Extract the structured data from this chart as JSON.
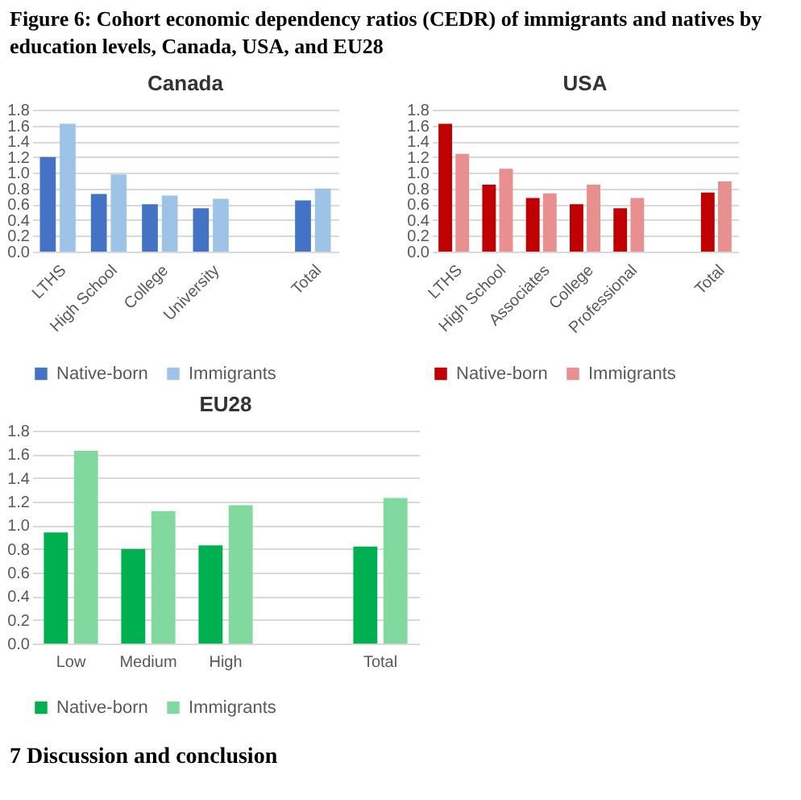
{
  "chart_data": [
    {
      "type": "bar",
      "title": "Canada",
      "annotations": [
        "Figure 6: Cohort economic dependency ratios (CEDR) of immigrants and natives by education levels, Canada, USA, and EU28"
      ],
      "categories": [
        "LTHS",
        "High School",
        "College",
        "University",
        null,
        "Total"
      ],
      "series": [
        {
          "name": "Native-born",
          "color": "#4472c4",
          "values": [
            1.2,
            0.73,
            0.6,
            0.55,
            null,
            0.65
          ]
        },
        {
          "name": "Immigrants",
          "color": "#9dc3e6",
          "values": [
            1.62,
            0.98,
            0.71,
            0.67,
            null,
            0.8
          ]
        }
      ],
      "ylim": [
        0,
        1.8
      ],
      "yticks": [
        {
          "value": 0,
          "label": "0.0"
        },
        {
          "value": 0.2,
          "label": "0.2"
        },
        {
          "value": 0.4,
          "label": "0.4"
        },
        {
          "value": 0.6,
          "label": "0.6"
        },
        {
          "value": 0.8,
          "label": "0.8"
        },
        {
          "value": 1,
          "label": "1.0"
        },
        {
          "value": 1.2,
          "label": "1.2"
        },
        {
          "value": 1.4,
          "label": "1.4"
        },
        {
          "value": 1.6,
          "label": "1.6"
        },
        {
          "value": 1.8,
          "label": "1.8"
        }
      ],
      "grid": "y",
      "legend": "bottom"
    },
    {
      "type": "bar",
      "title": "USA",
      "categories": [
        "LTHS",
        "High School",
        "Associates",
        "College",
        "Professional",
        null,
        "Total"
      ],
      "series": [
        {
          "name": "Native-born",
          "color": "#c00000",
          "values": [
            1.62,
            0.85,
            0.68,
            0.6,
            0.55,
            null,
            0.75
          ]
        },
        {
          "name": "Immigrants",
          "color": "#e88f8f",
          "values": [
            1.24,
            1.05,
            0.74,
            0.85,
            0.68,
            null,
            0.89
          ]
        }
      ],
      "ylim": [
        0,
        1.8
      ],
      "yticks": [
        {
          "value": 0,
          "label": "0.0"
        },
        {
          "value": 0.2,
          "label": "0.2"
        },
        {
          "value": 0.4,
          "label": "0.4"
        },
        {
          "value": 0.6,
          "label": "0.6"
        },
        {
          "value": 0.8,
          "label": "0.8"
        },
        {
          "value": 1,
          "label": "1.0"
        },
        {
          "value": 1.2,
          "label": "1.2"
        },
        {
          "value": 1.4,
          "label": "1.4"
        },
        {
          "value": 1.6,
          "label": "1.6"
        },
        {
          "value": 1.8,
          "label": "1.8"
        }
      ],
      "grid": "y",
      "legend": "bottom"
    },
    {
      "type": "bar",
      "title": "EU28",
      "annotations": [
        "7 Discussion and conclusion"
      ],
      "categories": [
        "Low",
        "Medium",
        "High",
        null,
        "Total"
      ],
      "series": [
        {
          "name": "Native-born",
          "color": "#00b050",
          "values": [
            0.94,
            0.8,
            0.83,
            null,
            0.82
          ]
        },
        {
          "name": "Immigrants",
          "color": "#82d9a0",
          "values": [
            1.63,
            1.12,
            1.17,
            null,
            1.23
          ]
        }
      ],
      "ylim": [
        0,
        1.8
      ],
      "yticks": [
        {
          "value": 0,
          "label": "0.0"
        },
        {
          "value": 0.2,
          "label": "0.2"
        },
        {
          "value": 0.4,
          "label": "0.4"
        },
        {
          "value": 0.6,
          "label": "0.6"
        },
        {
          "value": 0.8,
          "label": "0.8"
        },
        {
          "value": 1,
          "label": "1.0"
        },
        {
          "value": 1.2,
          "label": "1.2"
        },
        {
          "value": 1.4,
          "label": "1.4"
        },
        {
          "value": 1.6,
          "label": "1.6"
        },
        {
          "value": 1.8,
          "label": "1.8"
        }
      ],
      "grid": "y",
      "legend": "bottom"
    }
  ]
}
